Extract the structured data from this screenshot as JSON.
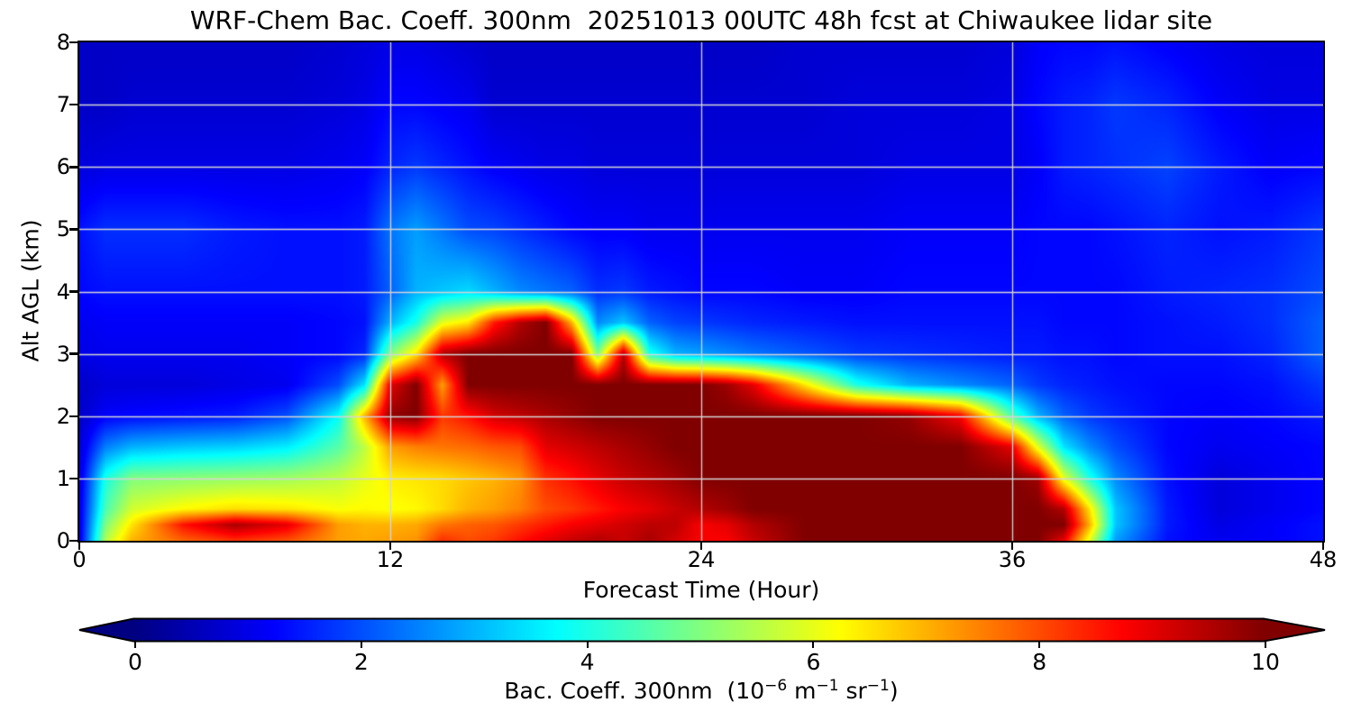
{
  "title": "WRF-Chem Bac. Coeff. 300nm  20251013 00UTC 48h fcst at Chiwaukee lidar site",
  "axes": {
    "x": {
      "label": "Forecast Time (Hour)",
      "ticks": [
        0,
        12,
        24,
        36,
        48
      ],
      "range": [
        0,
        48
      ]
    },
    "y": {
      "label": "Alt AGL (km)",
      "ticks": [
        0,
        1,
        2,
        3,
        4,
        5,
        6,
        7,
        8
      ],
      "range": [
        0,
        8
      ]
    }
  },
  "colorbar": {
    "ticks": [
      0,
      2,
      4,
      6,
      8,
      10
    ],
    "range": [
      0,
      10
    ],
    "extend": "both",
    "colormap": "jet",
    "label_parts": {
      "p0": "Bac. Coeff. 300nm  (10",
      "s0": "−6",
      "p1": " m",
      "s1": "−1",
      "p2": " sr",
      "s2": "−1",
      "p3": ")"
    }
  },
  "colors": {
    "background": "#ffffff",
    "axis": "#000000",
    "grid_line": "#d6d6d6",
    "cmap_stops": [
      "#000080",
      "#0000ff",
      "#00ffff",
      "#ffff00",
      "#ff0000",
      "#800000"
    ]
  },
  "chart_data": {
    "type": "heatmap",
    "title": "WRF-Chem Bac. Coeff. 300nm  20251013 00UTC 48h fcst at Chiwaukee lidar site",
    "xlabel": "Forecast Time (Hour)",
    "ylabel": "Alt AGL (km)",
    "value_label": "Bac. Coeff. 300nm (10^-6 m^-1 sr^-1)",
    "xlim": [
      0,
      48
    ],
    "ylim": [
      0,
      8
    ],
    "clim": [
      0,
      10
    ],
    "colormap": "jet",
    "grid_on": true,
    "grid": {
      "times": [
        0,
        1,
        2,
        4,
        6,
        8,
        10,
        11,
        12,
        13,
        14,
        15,
        16,
        17,
        18,
        19,
        20,
        21,
        22,
        23,
        24,
        25,
        26,
        28,
        30,
        32,
        34,
        36,
        37,
        38,
        39,
        40,
        42,
        44,
        46,
        48
      ],
      "alts_km": [
        0,
        0.25,
        0.5,
        1,
        1.5,
        2,
        2.5,
        3,
        3.5,
        4,
        5,
        6,
        7,
        8
      ],
      "values": [
        [
          1.0,
          1.0,
          1.0,
          0.9,
          0.8,
          0.7,
          0.7,
          1.0,
          1.1,
          1.3,
          1.4,
          0.9,
          0.7,
          0.7
        ],
        [
          5.5,
          5.0,
          4.5,
          4.0,
          2.5,
          1.2,
          0.9,
          1.1,
          1.2,
          1.4,
          1.7,
          1.0,
          0.7,
          0.7
        ],
        [
          7.0,
          6.5,
          5.8,
          5.0,
          3.0,
          1.3,
          0.9,
          1.1,
          1.2,
          1.4,
          1.7,
          1.0,
          0.8,
          0.7
        ],
        [
          7.8,
          8.6,
          6.3,
          5.1,
          3.2,
          1.4,
          0.9,
          1.1,
          1.2,
          1.4,
          1.7,
          1.0,
          0.8,
          0.7
        ],
        [
          8.3,
          9.6,
          6.6,
          5.2,
          3.3,
          1.5,
          1.0,
          1.1,
          1.2,
          1.4,
          1.5,
          1.0,
          0.8,
          0.7
        ],
        [
          8.0,
          9.0,
          6.5,
          5.3,
          3.6,
          2.0,
          1.1,
          1.2,
          1.2,
          1.4,
          1.4,
          1.0,
          0.8,
          0.7
        ],
        [
          7.2,
          7.2,
          6.2,
          5.6,
          4.6,
          3.8,
          2.0,
          1.3,
          1.3,
          1.4,
          1.4,
          1.1,
          0.9,
          0.8
        ],
        [
          7.1,
          7.0,
          6.3,
          6.0,
          5.6,
          7.0,
          3.5,
          1.6,
          1.4,
          1.5,
          1.5,
          1.2,
          1.0,
          0.9
        ],
        [
          7.2,
          7.0,
          6.2,
          6.4,
          7.2,
          9.8,
          9.0,
          5.0,
          3.0,
          2.2,
          2.4,
          1.6,
          1.3,
          1.0
        ],
        [
          7.3,
          7.1,
          6.3,
          6.5,
          7.5,
          10,
          10,
          6.5,
          4.0,
          3.0,
          2.8,
          1.8,
          1.3,
          1.0
        ],
        [
          8.3,
          7.6,
          6.6,
          6.6,
          7.6,
          8.2,
          7.2,
          9.5,
          6.0,
          3.2,
          2.4,
          1.6,
          1.2,
          0.9
        ],
        [
          8.0,
          7.8,
          7.0,
          6.8,
          7.7,
          8.6,
          10,
          10,
          6.5,
          3.4,
          2.0,
          1.4,
          1.1,
          0.8
        ],
        [
          8.2,
          7.9,
          7.2,
          7.0,
          7.9,
          9.2,
          10,
          10,
          8.5,
          3.0,
          1.9,
          1.2,
          0.8,
          0.7
        ],
        [
          8.6,
          8.2,
          7.5,
          7.3,
          8.0,
          9.4,
          10,
          10,
          9.5,
          2.6,
          1.7,
          1.1,
          0.8,
          0.7
        ],
        [
          9.0,
          8.5,
          8.0,
          8.3,
          9.0,
          9.6,
          10,
          10,
          10,
          2.4,
          1.5,
          1.0,
          0.8,
          0.7
        ],
        [
          9.3,
          8.8,
          8.2,
          8.6,
          9.2,
          9.8,
          10,
          10,
          7.0,
          2.2,
          1.3,
          1.0,
          0.8,
          0.7
        ],
        [
          9.5,
          9.0,
          8.5,
          9.0,
          9.4,
          10,
          10,
          5.0,
          2.6,
          1.7,
          1.2,
          0.9,
          0.8,
          0.7
        ],
        [
          9.3,
          9.2,
          8.8,
          9.3,
          9.6,
          10,
          10,
          9.5,
          3.2,
          1.8,
          1.2,
          0.9,
          0.8,
          0.7
        ],
        [
          9.6,
          9.4,
          9.0,
          9.5,
          9.8,
          10,
          10,
          4.0,
          2.2,
          1.5,
          1.1,
          0.9,
          0.8,
          0.7
        ],
        [
          9.2,
          9.4,
          9.3,
          9.7,
          10,
          10,
          10,
          3.0,
          1.9,
          1.4,
          1.1,
          0.9,
          0.8,
          0.7
        ],
        [
          8.8,
          8.8,
          9.5,
          10,
          10,
          10,
          10,
          2.8,
          1.8,
          1.3,
          1.1,
          0.9,
          0.8,
          0.7
        ],
        [
          8.8,
          9.0,
          9.7,
          10,
          10,
          10,
          9.7,
          2.6,
          1.7,
          1.3,
          1.1,
          0.9,
          0.8,
          0.7
        ],
        [
          9.3,
          9.5,
          10,
          10,
          10,
          10,
          9.0,
          2.4,
          1.6,
          1.3,
          1.1,
          0.9,
          0.8,
          0.7
        ],
        [
          10,
          10,
          10,
          10,
          10,
          10,
          6.5,
          2.1,
          1.5,
          1.2,
          1.1,
          0.9,
          0.8,
          0.8
        ],
        [
          10,
          10,
          10,
          10,
          10,
          10,
          4.0,
          1.8,
          1.4,
          1.2,
          1.1,
          0.9,
          0.9,
          0.8
        ],
        [
          10,
          10,
          10,
          10,
          10,
          9.8,
          3.0,
          1.7,
          1.4,
          1.3,
          1.2,
          1.0,
          0.9,
          0.8
        ],
        [
          10,
          10,
          10,
          10,
          10,
          8.8,
          2.6,
          1.6,
          1.4,
          1.3,
          1.2,
          1.0,
          0.9,
          0.8
        ],
        [
          10,
          10,
          10,
          10,
          9.0,
          4.5,
          2.2,
          1.5,
          1.4,
          1.3,
          1.2,
          1.0,
          1.0,
          0.9
        ],
        [
          10,
          10,
          10,
          9.7,
          6.0,
          3.0,
          1.8,
          1.5,
          1.4,
          1.3,
          1.3,
          1.2,
          1.3,
          1.2
        ],
        [
          9.0,
          10,
          9.5,
          6.0,
          3.5,
          2.2,
          1.6,
          1.4,
          1.3,
          1.3,
          1.3,
          1.5,
          1.5,
          1.3
        ],
        [
          6.0,
          7.0,
          6.5,
          4.0,
          2.6,
          1.8,
          1.5,
          1.4,
          1.3,
          1.3,
          1.3,
          1.6,
          1.6,
          1.3
        ],
        [
          2.8,
          3.2,
          3.2,
          2.6,
          2.0,
          1.6,
          1.4,
          1.3,
          1.3,
          1.3,
          1.4,
          1.7,
          1.8,
          1.4
        ],
        [
          1.4,
          1.5,
          1.5,
          1.4,
          1.3,
          1.3,
          1.3,
          1.4,
          1.4,
          1.5,
          1.6,
          1.9,
          1.6,
          1.2
        ],
        [
          1.1,
          1.0,
          0.9,
          0.9,
          1.1,
          1.2,
          1.3,
          1.4,
          1.5,
          1.6,
          1.4,
          1.5,
          1.2,
          1.0
        ],
        [
          1.2,
          1.2,
          1.1,
          1.1,
          1.2,
          1.3,
          1.4,
          1.6,
          1.7,
          1.7,
          1.5,
          1.2,
          1.0,
          0.9
        ],
        [
          1.4,
          1.4,
          1.3,
          1.3,
          1.3,
          1.5,
          1.8,
          2.2,
          2.2,
          2.0,
          1.8,
          1.3,
          1.0,
          0.9
        ]
      ]
    }
  }
}
